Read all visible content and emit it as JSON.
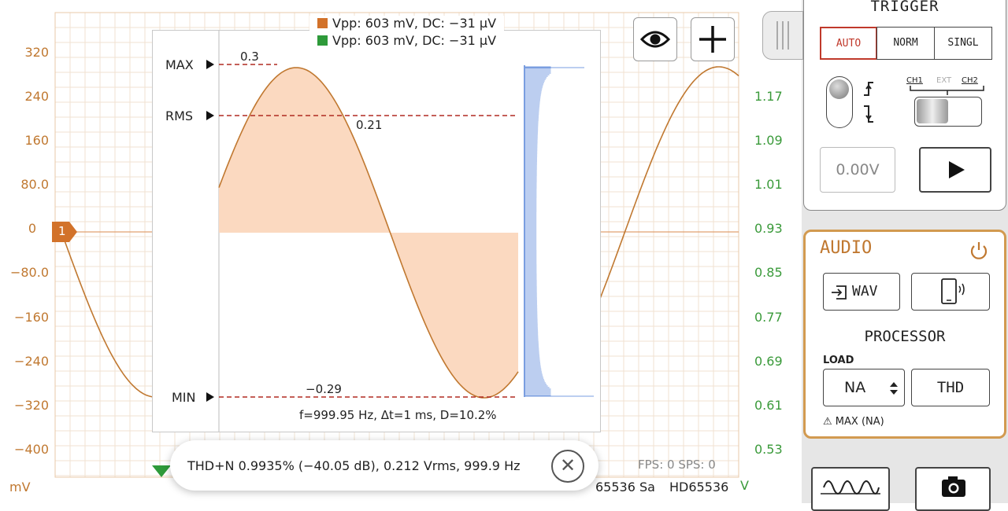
{
  "scope": {
    "y_left_ticks": [
      "320",
      "240",
      "160",
      "80.0",
      "0",
      "−80.0",
      "−160",
      "−240",
      "−320",
      "−400"
    ],
    "y_left_unit": "mV",
    "y_right_ticks": [
      "1.17",
      "1.09",
      "1.01",
      "0.93",
      "0.85",
      "0.77",
      "0.69",
      "0.61",
      "0.53"
    ],
    "y_right_unit": "V",
    "channel_marker": "1",
    "fps_text": "FPS: 0  SPS: 0",
    "samples_text": "65536 Sa",
    "hd_text": "HD65536",
    "colors": {
      "ch1": "#c07830",
      "ch2": "#3a9a3a",
      "grid": "#f0e2d2",
      "fill": "#fbd9c0",
      "marker": "#b02a20",
      "histogram": "#7a9ee0"
    }
  },
  "overlay": {
    "legend": [
      {
        "text": "Vpp: 603 mV, DC: −31 μV",
        "color": "#d2722a"
      },
      {
        "text": "Vpp: 603 mV, DC: −31 μV",
        "color": "#2e9a3a"
      }
    ],
    "max_label": "MAX",
    "rms_label": "RMS",
    "min_label": "MIN",
    "max_value": "0.3",
    "rms_value": "0.21",
    "min_value": "−0.29",
    "stats": "f=999.95 Hz, Δt=1 ms, D=10.2%"
  },
  "toast": {
    "text": "THD+N 0.9935% (−40.05 dB), 0.212 Vrms, 999.9 Hz",
    "close_icon": "close-circle-icon"
  },
  "toolbar": {
    "eye_icon": "eye-icon",
    "plus_icon": "plus-icon"
  },
  "trigger": {
    "title": "TRIGGER",
    "modes": [
      "AUTO",
      "NORM",
      "SINGL"
    ],
    "active_mode": "AUTO",
    "sources": [
      "CH1",
      "EXT",
      "CH2"
    ],
    "level": "0.00V",
    "play_icon": "play-icon"
  },
  "audio": {
    "title": "AUDIO",
    "wav_label": "WAV",
    "processor_label": "PROCESSOR",
    "load_label": "LOAD",
    "load_value": "NA",
    "thd_label": "THD",
    "max_note": "MAX (NA)",
    "accent": "#c07830"
  },
  "bottom_buttons": {
    "wave_icon": "waveform-icon",
    "camera_icon": "camera-icon"
  }
}
